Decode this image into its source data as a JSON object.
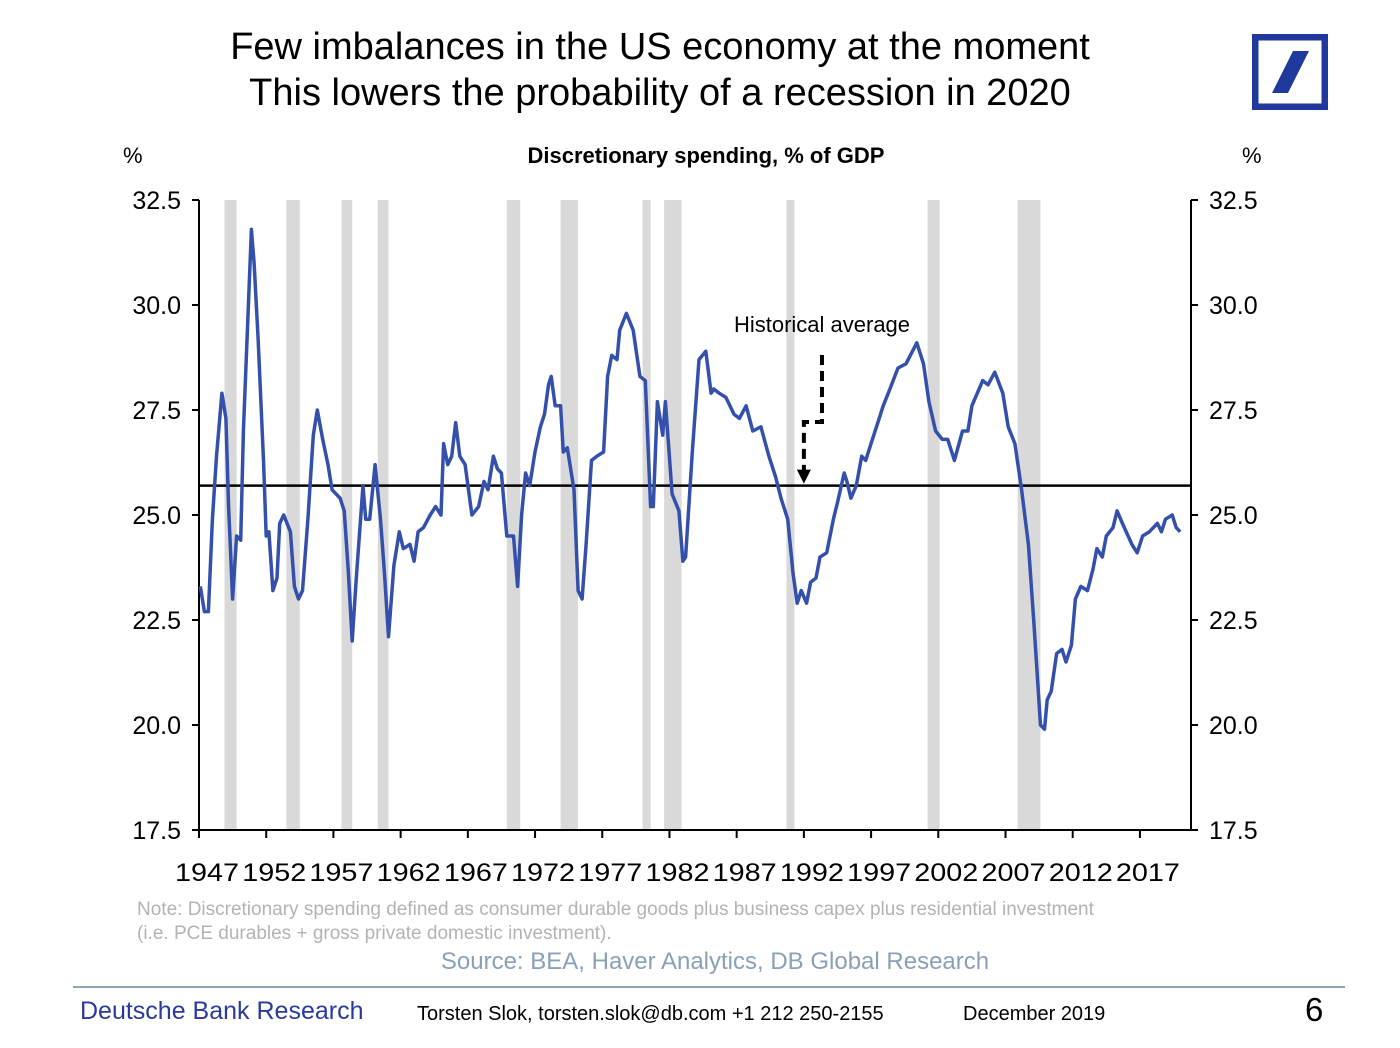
{
  "header": {
    "title_line1": "Few imbalances in the US economy at the moment",
    "title_line2": "This lowers the probability of a recession in 2020",
    "logo": "deutsche-bank-logo",
    "brand_color": "#1f3a9c"
  },
  "chart_data": {
    "type": "line",
    "title": "Discretionary spending, % of GDP",
    "ylabel_left": "%",
    "ylabel_right": "%",
    "xlabel": "",
    "xlim": [
      1947,
      2020.8
    ],
    "ylim": [
      17.5,
      32.5
    ],
    "yticks": [
      "32.5",
      "30.0",
      "27.5",
      "25.0",
      "22.5",
      "20.0",
      "17.5"
    ],
    "ytick_values": [
      32.5,
      30.0,
      27.5,
      25.0,
      22.5,
      20.0,
      17.5
    ],
    "xticks": [
      "1947",
      "1952",
      "1957",
      "1962",
      "1967",
      "1972",
      "1977",
      "1982",
      "1987",
      "1992",
      "1997",
      "2002",
      "2007",
      "2012",
      "2017"
    ],
    "xtick_values": [
      1947,
      1952,
      1957,
      1962,
      1967,
      1972,
      1977,
      1982,
      1987,
      1992,
      1997,
      2002,
      2007,
      2012,
      2017
    ],
    "grid": false,
    "line_color": "#3450aa",
    "recession_color": "#d9d9d9",
    "recessions": [
      [
        1948.9,
        1949.8
      ],
      [
        1953.5,
        1954.5
      ],
      [
        1957.6,
        1958.4
      ],
      [
        1960.3,
        1961.1
      ],
      [
        1969.9,
        1970.9
      ],
      [
        1973.9,
        1975.2
      ],
      [
        1980.0,
        1980.6
      ],
      [
        1981.6,
        1982.9
      ],
      [
        1990.7,
        1991.3
      ],
      [
        2001.2,
        2002.1
      ],
      [
        2007.9,
        2009.6
      ]
    ],
    "historical_average": 25.7,
    "annotation": {
      "text": "Historical average",
      "x": 1992.0,
      "y": 25.7
    },
    "series": [
      {
        "name": "Discretionary spending, % of GDP",
        "x": [
          1947.1,
          1947.4,
          1947.7,
          1948.0,
          1948.3,
          1948.7,
          1949.0,
          1949.2,
          1949.5,
          1949.8,
          1950.1,
          1950.3,
          1950.6,
          1950.9,
          1951.1,
          1951.4,
          1951.8,
          1952.0,
          1952.2,
          1952.5,
          1952.8,
          1953.0,
          1953.3,
          1953.8,
          1954.1,
          1954.4,
          1954.7,
          1955.1,
          1955.5,
          1955.8,
          1956.2,
          1956.6,
          1956.9,
          1957.5,
          1957.8,
          1958.1,
          1958.4,
          1958.7,
          1959.2,
          1959.4,
          1959.7,
          1960.1,
          1960.5,
          1960.8,
          1961.1,
          1961.5,
          1961.9,
          1962.2,
          1962.7,
          1963.0,
          1963.3,
          1963.7,
          1964.2,
          1964.6,
          1965.0,
          1965.2,
          1965.5,
          1965.8,
          1966.1,
          1966.4,
          1966.8,
          1967.3,
          1967.8,
          1968.2,
          1968.5,
          1968.9,
          1969.2,
          1969.5,
          1969.9,
          1970.4,
          1970.7,
          1971.0,
          1971.3,
          1971.6,
          1972.0,
          1972.4,
          1972.7,
          1973.0,
          1973.2,
          1973.5,
          1973.9,
          1974.1,
          1974.4,
          1974.9,
          1975.2,
          1975.5,
          1975.8,
          1976.2,
          1976.6,
          1977.1,
          1977.4,
          1977.7,
          1978.1,
          1978.3,
          1978.8,
          1979.3,
          1979.8,
          1980.2,
          1980.6,
          1980.8,
          1981.1,
          1981.5,
          1981.7,
          1982.2,
          1982.7,
          1983.0,
          1983.2,
          1983.7,
          1984.2,
          1984.7,
          1985.1,
          1985.3,
          1985.7,
          1986.2,
          1986.8,
          1987.2,
          1987.7,
          1988.2,
          1988.8,
          1989.4,
          1989.9,
          1990.3,
          1990.8,
          1991.2,
          1991.5,
          1991.8,
          1992.2,
          1992.5,
          1992.9,
          1993.2,
          1993.7,
          1994.2,
          1994.5,
          1995.0,
          1995.2,
          1995.5,
          1995.9,
          1996.3,
          1996.6,
          1997.1,
          1997.6,
          1997.9,
          1998.4,
          1999.0,
          1999.6,
          2000.4,
          2000.9,
          2001.3,
          2001.8,
          2002.3,
          2002.7,
          2003.2,
          2003.8,
          2004.2,
          2004.5,
          2004.9,
          2005.3,
          2005.7,
          2006.2,
          2006.8,
          2007.2,
          2007.7,
          2008.2,
          2008.7,
          2009.1,
          2009.6,
          2009.9,
          2010.1,
          2010.4,
          2010.8,
          2011.2,
          2011.5,
          2011.9,
          2012.2,
          2012.6,
          2013.1,
          2013.5,
          2013.8,
          2014.2,
          2014.5,
          2015.0,
          2015.3,
          2015.7,
          2016.4,
          2016.8,
          2017.2,
          2017.7,
          2018.3,
          2018.6,
          2018.9,
          2019.4,
          2019.7,
          2020.0
        ],
        "values": [
          23.3,
          22.7,
          22.7,
          24.9,
          26.4,
          27.9,
          27.3,
          25.2,
          23.0,
          24.5,
          24.4,
          27.0,
          29.4,
          31.8,
          31.0,
          29.2,
          26.3,
          24.5,
          24.6,
          23.2,
          23.5,
          24.8,
          25.0,
          24.6,
          23.3,
          23.0,
          23.2,
          24.9,
          26.9,
          27.5,
          26.8,
          26.2,
          25.6,
          25.4,
          25.1,
          23.7,
          22.0,
          23.5,
          25.7,
          24.9,
          24.9,
          26.2,
          24.9,
          23.6,
          22.1,
          23.8,
          24.6,
          24.2,
          24.3,
          23.9,
          24.6,
          24.7,
          25.0,
          25.2,
          25.0,
          26.7,
          26.2,
          26.4,
          27.2,
          26.4,
          26.2,
          25.0,
          25.2,
          25.8,
          25.6,
          26.4,
          26.1,
          26.0,
          24.5,
          24.5,
          23.3,
          25.0,
          26.0,
          25.7,
          26.5,
          27.1,
          27.4,
          28.1,
          28.3,
          27.6,
          27.6,
          26.5,
          26.6,
          25.6,
          23.2,
          23.0,
          24.3,
          26.3,
          26.4,
          26.5,
          28.3,
          28.8,
          28.7,
          29.4,
          29.8,
          29.4,
          28.3,
          28.2,
          25.2,
          25.2,
          27.7,
          26.9,
          27.7,
          25.5,
          25.1,
          23.9,
          24.0,
          26.5,
          28.7,
          28.9,
          27.9,
          28.0,
          27.9,
          27.8,
          27.4,
          27.3,
          27.6,
          27.0,
          27.1,
          26.4,
          25.9,
          25.4,
          24.9,
          23.6,
          22.9,
          23.2,
          22.9,
          23.4,
          23.5,
          24.0,
          24.1,
          24.9,
          25.3,
          26.0,
          25.8,
          25.4,
          25.7,
          26.4,
          26.3,
          26.8,
          27.3,
          27.6,
          28.0,
          28.5,
          28.6,
          29.1,
          28.6,
          27.7,
          27.0,
          26.8,
          26.8,
          26.3,
          27.0,
          27.0,
          27.6,
          27.9,
          28.2,
          28.1,
          28.4,
          27.9,
          27.1,
          26.7,
          25.6,
          24.3,
          22.5,
          20.0,
          19.9,
          20.6,
          20.8,
          21.7,
          21.8,
          21.5,
          21.9,
          23.0,
          23.3,
          23.2,
          23.7,
          24.2,
          24.0,
          24.5,
          24.7,
          25.1,
          24.8,
          24.3,
          24.1,
          24.5,
          24.6,
          24.8,
          24.6,
          24.9,
          25.0,
          24.7,
          24.6
        ]
      }
    ]
  },
  "note": {
    "line1": "Note: Discretionary spending defined as consumer durable goods plus business capex plus residential investment",
    "line2": "(i.e. PCE durables + gross private domestic investment)."
  },
  "source": "Source: BEA, Haver Analytics, DB Global Research",
  "footer": {
    "brand": "Deutsche Bank Research",
    "author": "Torsten Slok, torsten.slok@db.com  +1 212 250-2155",
    "date": "December 2019",
    "page": "6"
  }
}
